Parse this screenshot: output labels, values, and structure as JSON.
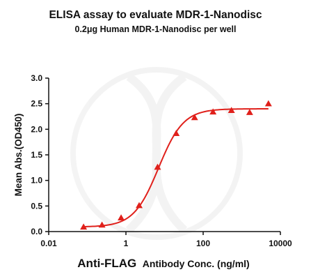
{
  "chart_data": {
    "type": "scatter",
    "title": "ELISA assay to evaluate MDR-1-Nanodisc",
    "subtitle": "0.2μg Human MDR-1-Nanodisc per well",
    "xlabel_main": "Anti-FLAG",
    "xlabel_sub": "Antibody Conc. (ng/ml)",
    "ylabel": "Mean Abs.(OD450)",
    "x_scale": "log",
    "xlim": [
      0.01,
      10000
    ],
    "ylim": [
      0,
      3.0
    ],
    "x_ticks": [
      0.01,
      1,
      100,
      10000
    ],
    "x_tick_labels": [
      "0.01",
      "1",
      "100",
      "10000"
    ],
    "y_ticks": [
      0,
      0.5,
      1.0,
      1.5,
      2.0,
      2.5,
      3.0
    ],
    "y_tick_labels": [
      "0.0",
      "0.5",
      "1.0",
      "1.5",
      "2.0",
      "2.5",
      "3.0"
    ],
    "grid": false,
    "color": "#e0201b",
    "marker": "triangle",
    "points": [
      {
        "x": 0.08,
        "y": 0.09
      },
      {
        "x": 0.24,
        "y": 0.13
      },
      {
        "x": 0.75,
        "y": 0.27
      },
      {
        "x": 2.2,
        "y": 0.51
      },
      {
        "x": 6.6,
        "y": 1.26
      },
      {
        "x": 20,
        "y": 1.92
      },
      {
        "x": 60,
        "y": 2.23
      },
      {
        "x": 180,
        "y": 2.34
      },
      {
        "x": 540,
        "y": 2.37
      },
      {
        "x": 1600,
        "y": 2.33
      },
      {
        "x": 4900,
        "y": 2.5
      }
    ],
    "fit": {
      "bottom": 0.09,
      "top": 2.4,
      "ec50": 7.0,
      "hill": 1.35
    }
  }
}
